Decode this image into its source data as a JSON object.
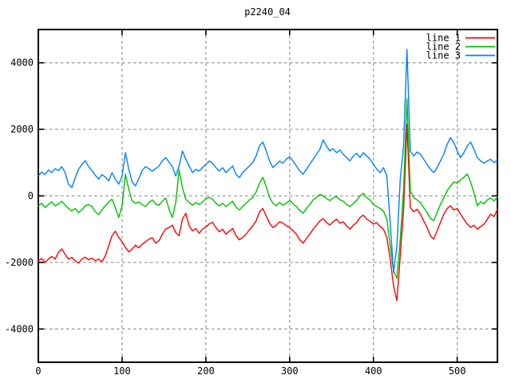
{
  "chart_data": {
    "type": "line",
    "title": "p2240_04",
    "xlabel": "",
    "ylabel": "",
    "xlim": [
      0,
      548
    ],
    "ylim": [
      -5000,
      5000
    ],
    "x_ticks": [
      0,
      100,
      200,
      300,
      400,
      500
    ],
    "y_ticks": [
      -4000,
      -2000,
      0,
      2000,
      4000
    ],
    "grid": true,
    "legend_position": "top-right",
    "background_color": "#ffffff",
    "grid_color": "#9c9c9c",
    "border_color": "#000000",
    "x_start": 0,
    "x_step": 4,
    "series": [
      {
        "name": "line 1",
        "color": "#ff0000",
        "values": [
          -1950,
          -1880,
          -2000,
          -1900,
          -1820,
          -1900,
          -1700,
          -1590,
          -1760,
          -1900,
          -1850,
          -1950,
          -2020,
          -1900,
          -1840,
          -1920,
          -1870,
          -1950,
          -1900,
          -1980,
          -1800,
          -1500,
          -1200,
          -1060,
          -1250,
          -1380,
          -1550,
          -1680,
          -1600,
          -1480,
          -1560,
          -1450,
          -1380,
          -1300,
          -1260,
          -1420,
          -1350,
          -1150,
          -1000,
          -950,
          -880,
          -1100,
          -1200,
          -700,
          -520,
          -900,
          -1050,
          -980,
          -1120,
          -1000,
          -930,
          -840,
          -800,
          -950,
          -1080,
          -1000,
          -1150,
          -1060,
          -980,
          -1200,
          -1320,
          -1250,
          -1150,
          -1020,
          -900,
          -750,
          -480,
          -380,
          -600,
          -820,
          -950,
          -880,
          -780,
          -820,
          -900,
          -950,
          -1050,
          -1150,
          -1320,
          -1420,
          -1280,
          -1150,
          -1000,
          -880,
          -750,
          -680,
          -800,
          -870,
          -780,
          -700,
          -820,
          -780,
          -900,
          -1000,
          -880,
          -800,
          -650,
          -580,
          -700,
          -760,
          -850,
          -800,
          -920,
          -1000,
          -1250,
          -1900,
          -2700,
          -3150,
          -1800,
          -400,
          2150,
          -350,
          -480,
          -400,
          -550,
          -750,
          -950,
          -1200,
          -1300,
          -1050,
          -800,
          -550,
          -380,
          -300,
          -420,
          -380,
          -550,
          -700,
          -850,
          -950,
          -880,
          -1000,
          -920,
          -850,
          -700,
          -550,
          -620,
          -400
        ]
      },
      {
        "name": "line 2",
        "color": "#00c000",
        "values": [
          -300,
          -220,
          -350,
          -260,
          -180,
          -300,
          -240,
          -160,
          -280,
          -380,
          -450,
          -380,
          -500,
          -420,
          -300,
          -260,
          -320,
          -480,
          -560,
          -420,
          -300,
          -180,
          -100,
          -350,
          -650,
          -300,
          650,
          200,
          -150,
          -220,
          -180,
          -260,
          -320,
          -200,
          -120,
          -240,
          -280,
          -160,
          -60,
          -400,
          -650,
          -200,
          780,
          250,
          -100,
          -200,
          -280,
          -200,
          -260,
          -180,
          -80,
          -40,
          -100,
          -220,
          -300,
          -220,
          -320,
          -240,
          -160,
          -340,
          -420,
          -320,
          -220,
          -120,
          -40,
          120,
          380,
          560,
          280,
          -40,
          -220,
          -300,
          -200,
          -280,
          -220,
          -140,
          -240,
          -320,
          -440,
          -520,
          -380,
          -260,
          -120,
          -40,
          40,
          0,
          -80,
          -140,
          -60,
          -20,
          -120,
          -160,
          -260,
          -320,
          -220,
          -140,
          0,
          80,
          -60,
          -120,
          -260,
          -320,
          -380,
          -460,
          -700,
          -1500,
          -2250,
          -2480,
          -1300,
          200,
          2920,
          150,
          -50,
          -120,
          -200,
          -350,
          -500,
          -680,
          -740,
          -500,
          -260,
          -60,
          150,
          300,
          420,
          380,
          480,
          560,
          660,
          420,
          100,
          -300,
          -180,
          -240,
          -120,
          -60,
          -150,
          -30
        ]
      },
      {
        "name": "line 3",
        "color": "#0080ff",
        "values": [
          600,
          720,
          640,
          780,
          700,
          820,
          760,
          880,
          700,
          350,
          250,
          550,
          800,
          950,
          1060,
          880,
          760,
          620,
          500,
          640,
          560,
          450,
          700,
          500,
          350,
          600,
          1300,
          800,
          420,
          300,
          520,
          760,
          880,
          820,
          740,
          820,
          900,
          1050,
          1150,
          1020,
          880,
          600,
          900,
          1350,
          1100,
          900,
          700,
          800,
          750,
          850,
          950,
          1050,
          980,
          850,
          750,
          850,
          700,
          800,
          900,
          650,
          550,
          700,
          800,
          900,
          1000,
          1200,
          1500,
          1620,
          1350,
          1050,
          850,
          950,
          1050,
          980,
          1100,
          1180,
          1050,
          900,
          750,
          650,
          800,
          950,
          1100,
          1250,
          1400,
          1680,
          1500,
          1350,
          1420,
          1300,
          1380,
          1250,
          1150,
          1050,
          1200,
          1280,
          1150,
          1300,
          1200,
          1100,
          950,
          800,
          700,
          850,
          600,
          -800,
          -2300,
          -1500,
          500,
          1500,
          4400,
          1350,
          1200,
          1320,
          1250,
          1100,
          950,
          800,
          700,
          850,
          1050,
          1250,
          1550,
          1750,
          1600,
          1350,
          1150,
          1300,
          1500,
          1620,
          1400,
          1150,
          1050,
          980,
          1050,
          1100,
          1000,
          1080
        ]
      }
    ]
  }
}
